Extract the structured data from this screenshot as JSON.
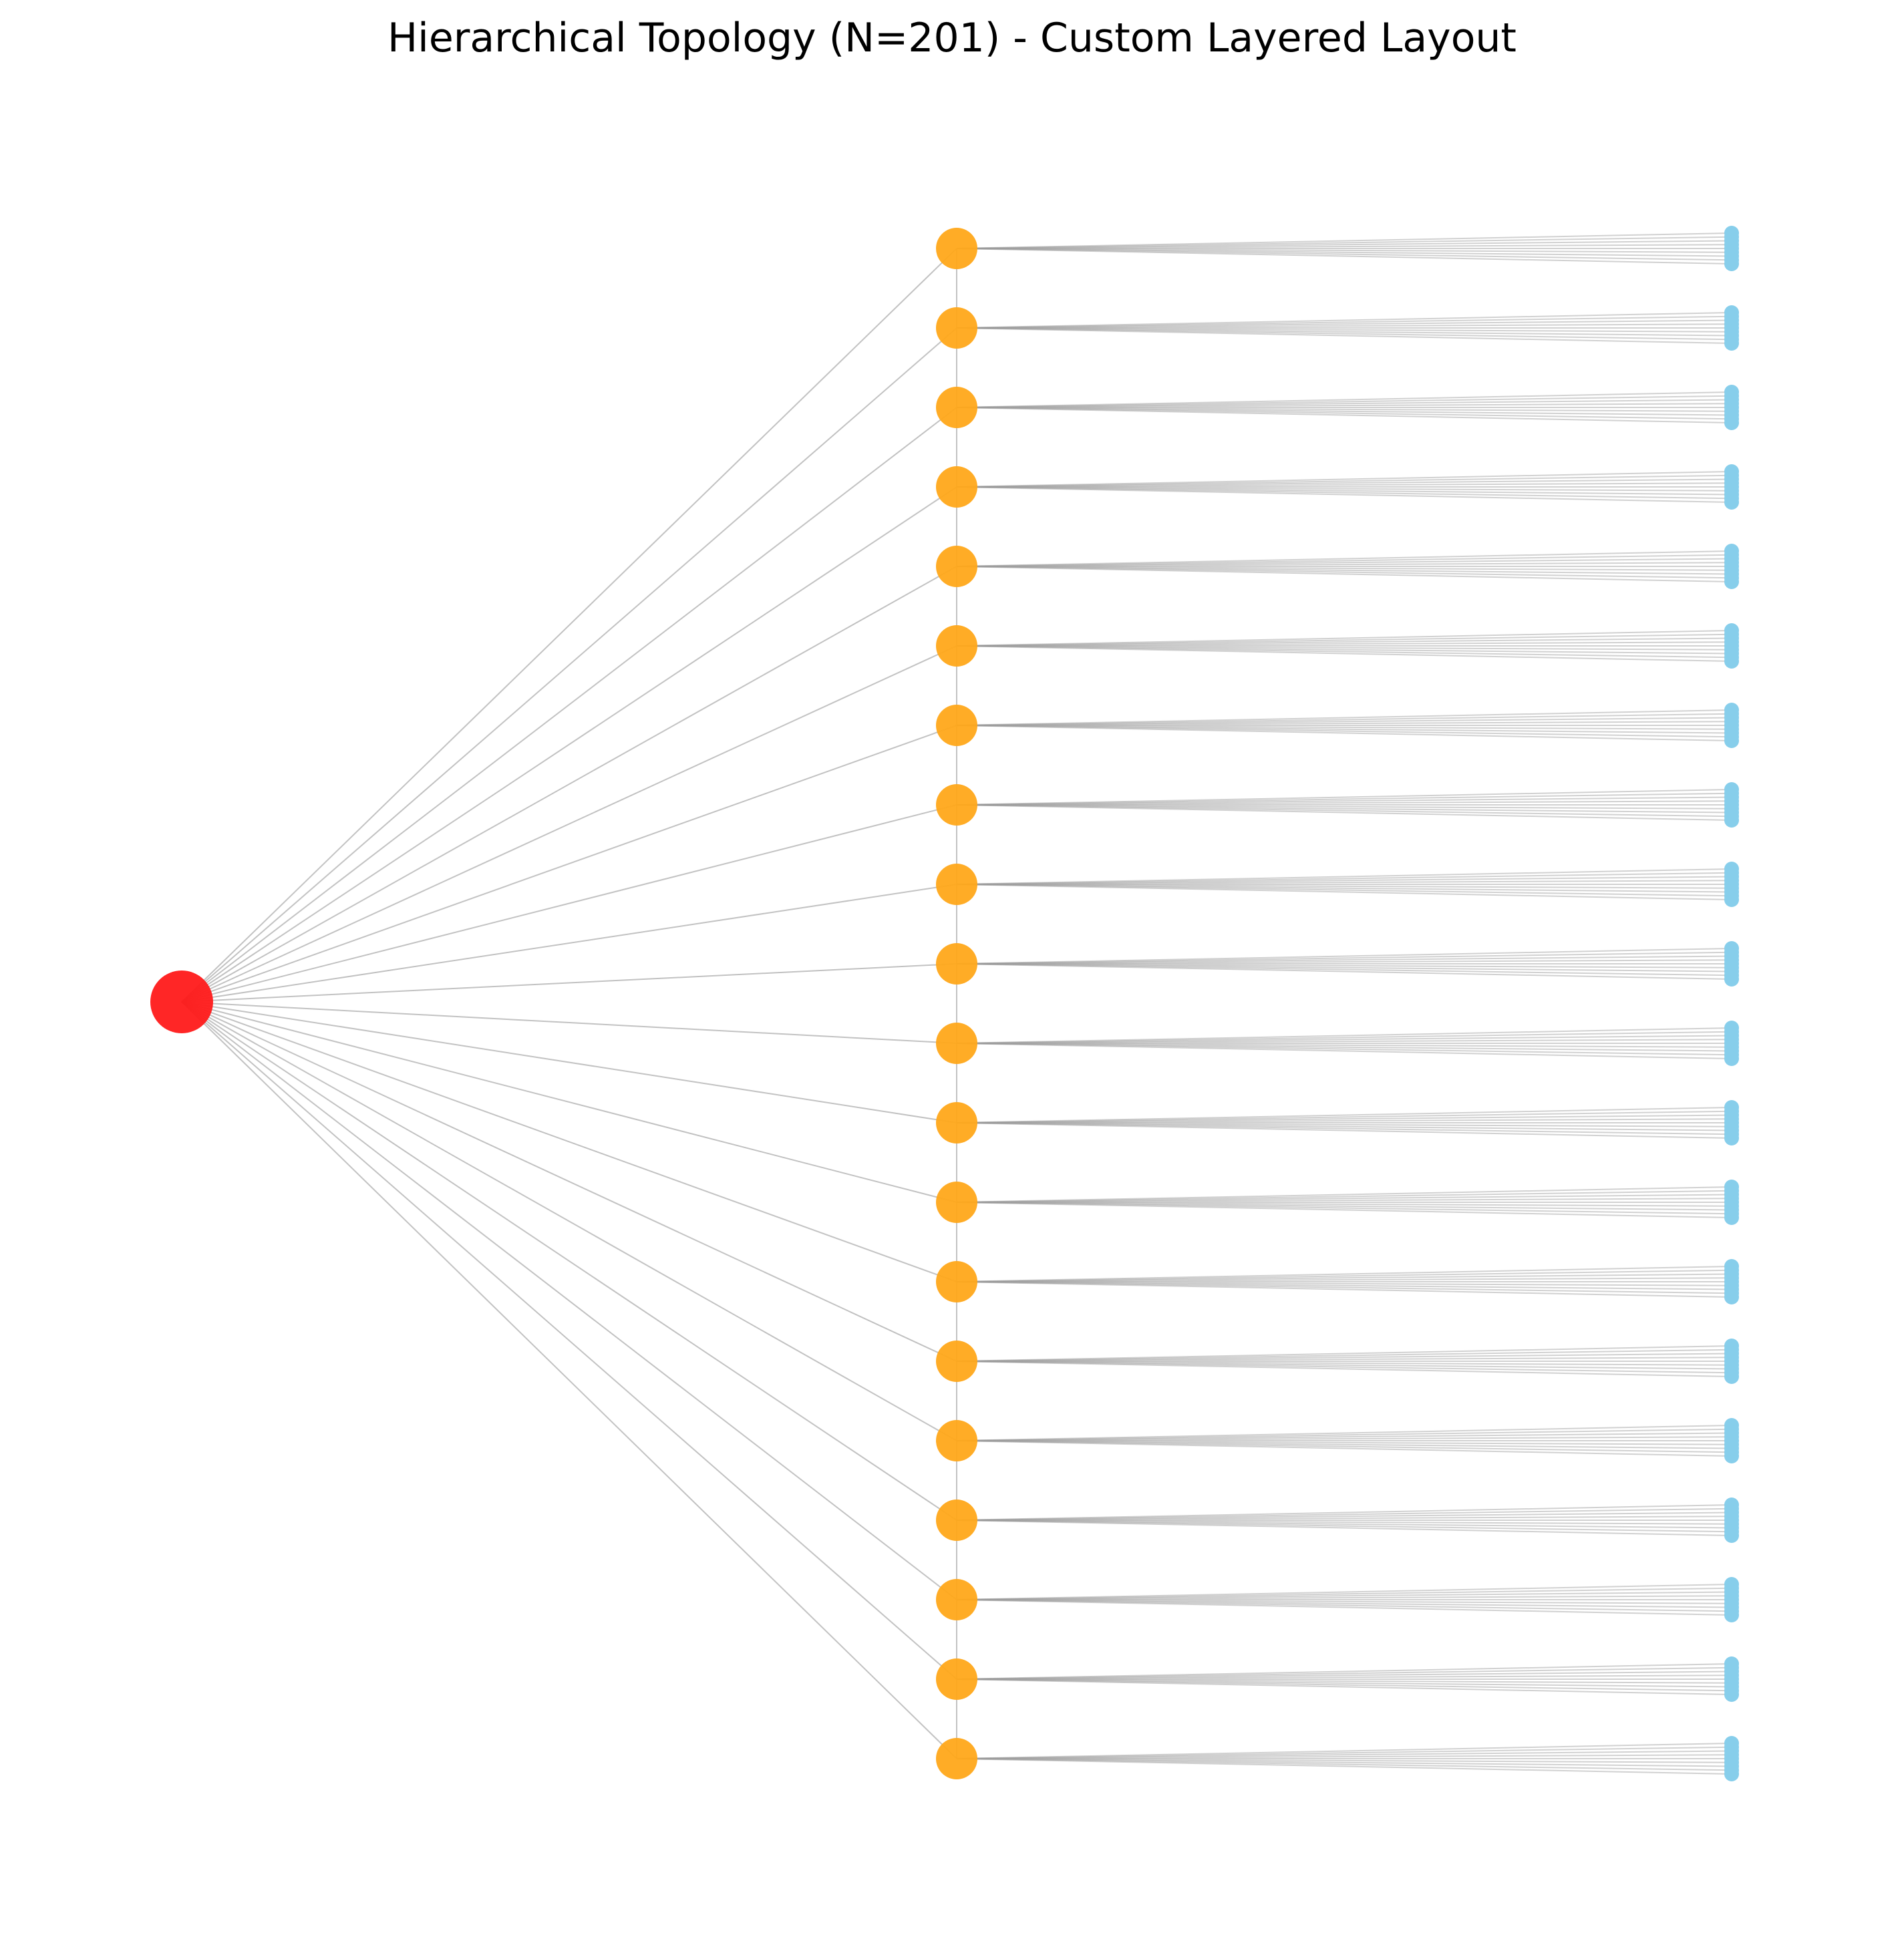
{
  "title": "Hierarchical Topology (N=201) - Custom Layered Layout",
  "graph": {
    "node_count": 201,
    "layers": [
      {
        "name": "root",
        "count": 1,
        "color": "#ff1a1a",
        "shape": "circle"
      },
      {
        "name": "aggregation",
        "count": 20,
        "color": "#ffa81a",
        "shape": "circle"
      },
      {
        "name": "leaf",
        "count": 180,
        "color": "#87ceeb",
        "shape": "circle",
        "leaves_per_parent": 9
      }
    ],
    "edge_color": "#9a9a9a",
    "edges": {
      "root_to_aggregation": 20,
      "aggregation_chain": 19,
      "aggregation_to_leaf": 180
    }
  }
}
